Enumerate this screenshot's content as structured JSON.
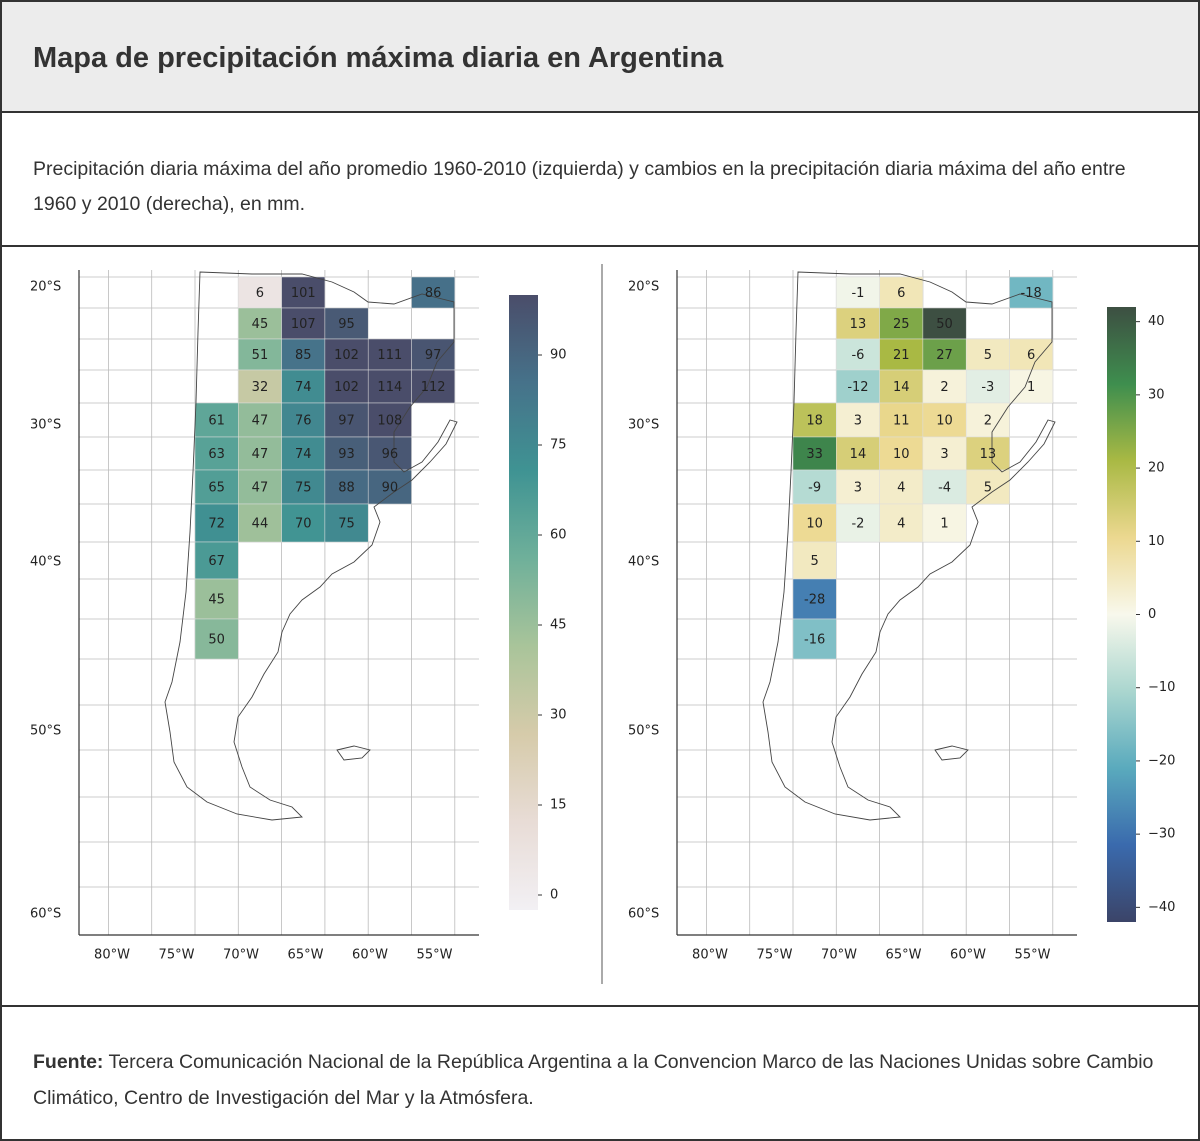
{
  "header": {
    "title": "Mapa de precipitación máxima diaria en Argentina"
  },
  "subtitle": "Precipitación diaria máxima del año promedio 1960-2010 (izquierda) y cambios en la precipitación diaria máxima del año entre 1960 y 2010 (derecha), en mm.",
  "maps": [
    {
      "grid": [
        [
          null,
          6,
          101,
          null,
          null,
          86
        ],
        [
          null,
          45,
          107,
          95,
          null,
          null
        ],
        [
          null,
          51,
          85,
          102,
          111,
          97
        ],
        [
          null,
          32,
          74,
          102,
          114,
          112
        ],
        [
          61,
          47,
          76,
          97,
          108,
          null
        ],
        [
          63,
          47,
          74,
          93,
          96,
          null
        ],
        [
          65,
          47,
          75,
          88,
          90,
          null
        ],
        [
          72,
          44,
          70,
          75,
          null,
          null
        ],
        [
          67,
          null,
          null,
          null,
          null,
          null
        ],
        [
          45,
          null,
          null,
          null,
          null,
          null
        ],
        [
          50,
          null,
          null,
          null,
          null,
          null
        ]
      ],
      "colorbar": {
        "lim": [
          -2.5,
          100
        ],
        "ticks": [
          0,
          15,
          30,
          45,
          60,
          75,
          90
        ],
        "colors": [
          "#f2f0f4",
          "#e8dcd6",
          "#d6cbaa",
          "#a9c49a",
          "#6fb09a",
          "#3f9393",
          "#46728a",
          "#4a4d6a"
        ]
      },
      "lat_labels": [
        "20°S",
        "30°S",
        "40°S",
        "50°S",
        "60°S"
      ],
      "lon_labels": [
        "80°W",
        "75°W",
        "70°W",
        "65°W",
        "60°W",
        "55°W"
      ]
    },
    {
      "grid": [
        [
          null,
          -1,
          6,
          null,
          null,
          -18
        ],
        [
          null,
          13,
          25,
          50,
          null,
          null
        ],
        [
          null,
          -6,
          21,
          27,
          5,
          6
        ],
        [
          null,
          -12,
          14,
          2,
          -3,
          1
        ],
        [
          18,
          3,
          11,
          10,
          2,
          null
        ],
        [
          33,
          14,
          10,
          3,
          13,
          null
        ],
        [
          -9,
          3,
          4,
          -4,
          5,
          null
        ],
        [
          10,
          -2,
          4,
          1,
          null,
          null
        ],
        [
          5,
          null,
          null,
          null,
          null,
          null
        ],
        [
          -28,
          null,
          null,
          null,
          null,
          null
        ],
        [
          -16,
          null,
          null,
          null,
          null,
          null
        ]
      ],
      "colorbar": {
        "lim": [
          -42,
          42
        ],
        "ticks": [
          {
            "value": -40,
            "label": "−40"
          },
          {
            "value": -30,
            "label": "−30"
          },
          {
            "value": -20,
            "label": "−20"
          },
          {
            "value": -10,
            "label": "−10"
          },
          0,
          10,
          20,
          30,
          40
        ],
        "colors": [
          "#3b4468",
          "#3a6aad",
          "#5aaabd",
          "#aad6cf",
          "#f8f8ec",
          "#ecd890",
          "#a9b944",
          "#3e8e4e",
          "#3d4f42"
        ]
      },
      "lat_labels": [
        "20°S",
        "30°S",
        "40°S",
        "50°S",
        "60°S"
      ],
      "lon_labels": [
        "80°W",
        "75°W",
        "70°W",
        "65°W",
        "60°W",
        "55°W"
      ]
    }
  ],
  "footer": {
    "label": "Fuente:",
    "text": "Tercera Comunicación Nacional de la República Argentina a la Convencion Marco de las Naciones Unidas sobre Cambio Climático, Centro de Investigación del Mar y la Atmósfera."
  }
}
